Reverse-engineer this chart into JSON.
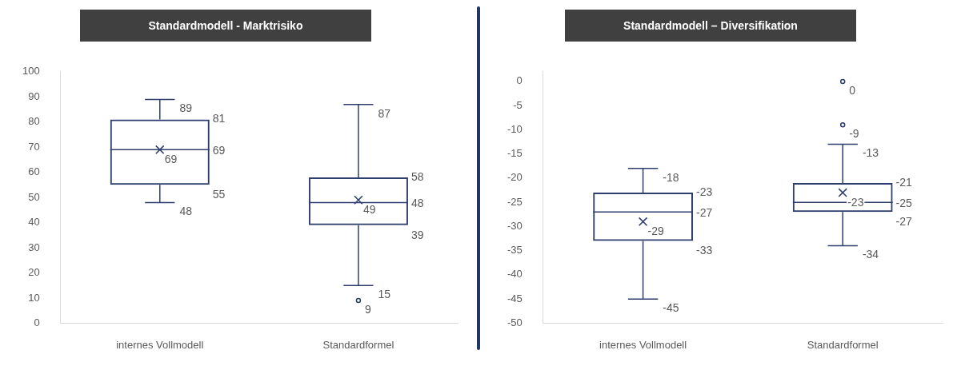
{
  "chart_data": [
    {
      "type": "box",
      "title": "Standardmodell - Marktrisiko",
      "categories": [
        "internes Vollmodell",
        "Standardformel"
      ],
      "series": [
        {
          "color": "#2e3f6e",
          "boxes": [
            {
              "low": 48,
              "q1": 55,
              "median": 69,
              "q3": 81,
              "high": 89,
              "mean": 69
            },
            {
              "low": 15,
              "q1": 39,
              "median": 48,
              "q3": 58,
              "high": 87,
              "mean": 49,
              "outliers": [
                9
              ]
            }
          ]
        }
      ],
      "ylim": [
        0,
        100
      ],
      "yticks": [
        0,
        10,
        20,
        30,
        40,
        50,
        60,
        70,
        80,
        90,
        100
      ],
      "grid": false,
      "annotations": [
        "89",
        "81",
        "69",
        "55",
        "48",
        "69",
        "87",
        "58",
        "48",
        "39",
        "15",
        "49",
        "9"
      ]
    },
    {
      "type": "box",
      "title": "Standardmodell – Diversifikation",
      "categories": [
        "internes Vollmodell",
        "Standardformel"
      ],
      "series": [
        {
          "color": "#2e3f6e",
          "boxes": [
            {
              "low": -45,
              "q1": -33,
              "median": -27,
              "q3": -23,
              "high": -18,
              "mean": -29
            },
            {
              "low": -34,
              "q1": -27,
              "median": -25,
              "q3": -21,
              "high": -13,
              "mean": -23,
              "outliers": [
                0,
                -9
              ]
            }
          ]
        }
      ],
      "ylim": [
        -50,
        2
      ],
      "yticks": [
        -50,
        -45,
        -40,
        -35,
        -30,
        -25,
        -20,
        -15,
        -10,
        -5,
        0
      ],
      "grid": false,
      "annotations": [
        "-18",
        "-23",
        "-27",
        "-33",
        "-45",
        "-29",
        "-13",
        "-21",
        "-25",
        "-27",
        "-34",
        "-23",
        "0",
        "-9"
      ]
    }
  ]
}
